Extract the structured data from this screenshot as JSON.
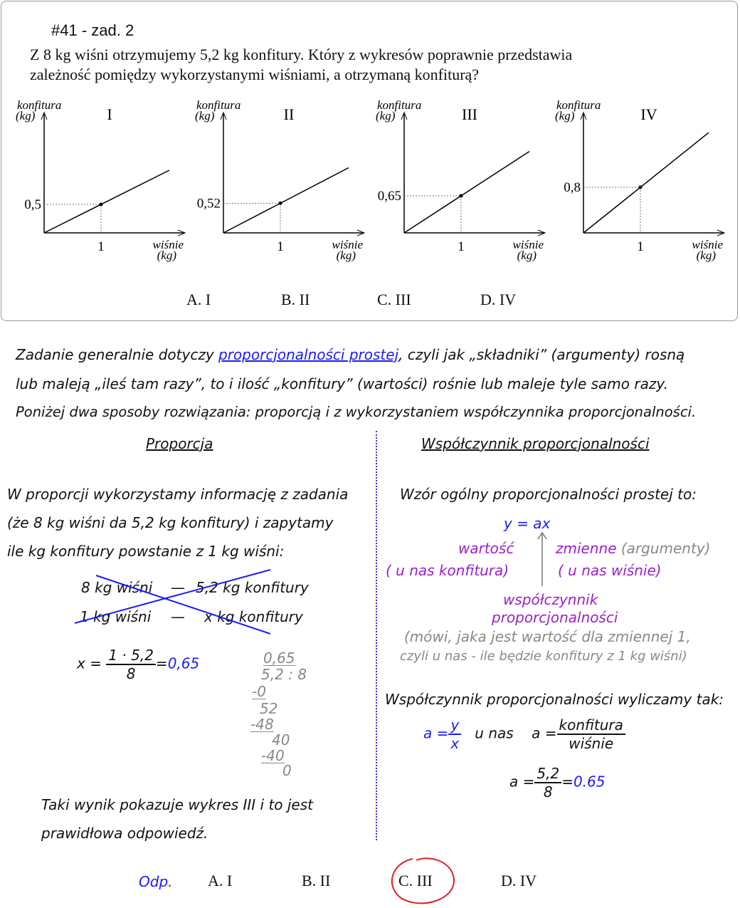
{
  "problem": {
    "number": "#41 - zad. 2",
    "text_line1": "Z 8 kg wiśni otrzymujemy 5,2 kg konfitury. Który z wykresów poprawnie przedstawia",
    "text_line2": "zależność pomiędzy wykorzystanymi wiśniami, a otrzymaną konfiturą?",
    "y_label_1": "konfitura",
    "y_label_2": "(kg)",
    "x_label_1": "wiśnie",
    "x_label_2": "(kg)",
    "x_tick": "1",
    "graphs": [
      {
        "label": "I",
        "y_tick": "0,5",
        "value": 0.5
      },
      {
        "label": "II",
        "y_tick": "0,52",
        "value": 0.52
      },
      {
        "label": "III",
        "y_tick": "0,65",
        "value": 0.65
      },
      {
        "label": "IV",
        "y_tick": "0,8",
        "value": 0.8
      }
    ],
    "options": [
      "A.  I",
      "B.  II",
      "C.  III",
      "D.  IV"
    ]
  },
  "intro": {
    "l1a": "Zadanie generalnie dotyczy ",
    "link": "proporcjonalności prostej",
    "l1b": ", czyli jak „składniki” (argumenty) rosną",
    "l2": "lub maleją „ileś tam razy”, to i ilość „konfitury” (wartości) rośnie lub maleje tyle samo razy.",
    "l3": "Poniżej dwa sposoby rozwiązania: proporcją i z wykorzystaniem współczynnika proporcjonalności."
  },
  "left": {
    "title": "Proporcja",
    "p1": "W proporcji wykorzystamy informację z zadania",
    "p2": "(że 8 kg wiśni da 5,2 kg konfitury) i zapytamy",
    "p3": "ile kg konfitury powstanie z 1 kg wiśni:",
    "r1a": "8 kg wiśni",
    "r1b": "5,2 kg konfitury",
    "r2a": "1 kg wiśni",
    "r2b": "x kg konfitury",
    "dash": "—",
    "eq_x": "x =",
    "eq_num": "1 · 5,2",
    "eq_den": "8",
    "eq_eq": "=",
    "eq_res": "0,65",
    "division": [
      "0,65",
      "5,2 : 8",
      "-0",
      "52",
      "-48",
      "40",
      "-40",
      "0"
    ],
    "c1": "Taki wynik pokazuje wykres III i to jest",
    "c2": "prawidłowa odpowiedź."
  },
  "right": {
    "title": "Współczynnik proporcjonalności",
    "p1": "Wzór ogólny proporcjonalności prostej to:",
    "formula": "y = ax",
    "wart": "wartość",
    "wart2": "( u nas konfitura)",
    "zm": "zmienne",
    "arg": "(argumenty)",
    "zm2": "( u nas wiśnie)",
    "ws1": "współczynnik",
    "ws2": "proporcjonalności",
    "g1": "(mówi, jaka jest wartość dla zmiennej 1,",
    "g2": "czyli u nas - ile będzie konfitury z 1 kg wiśni)",
    "p2": "Współczynnik proporcjonalności wyliczamy tak:",
    "a_eq": "a =",
    "y": "y",
    "x": "x",
    "unas": "u nas",
    "konf": "konfitura",
    "wis": "wiśnie",
    "num": "5,2",
    "den": "8",
    "eq": "=",
    "res": "0.65"
  },
  "answer": {
    "label": "Odp.",
    "options": [
      "A.  I",
      "B.  II",
      "C.  III",
      "D.  IV"
    ],
    "selected": "C.  III"
  },
  "colors": {
    "blue": "#1a1aff",
    "purple": "#9b1fc9",
    "red": "#e02020"
  }
}
